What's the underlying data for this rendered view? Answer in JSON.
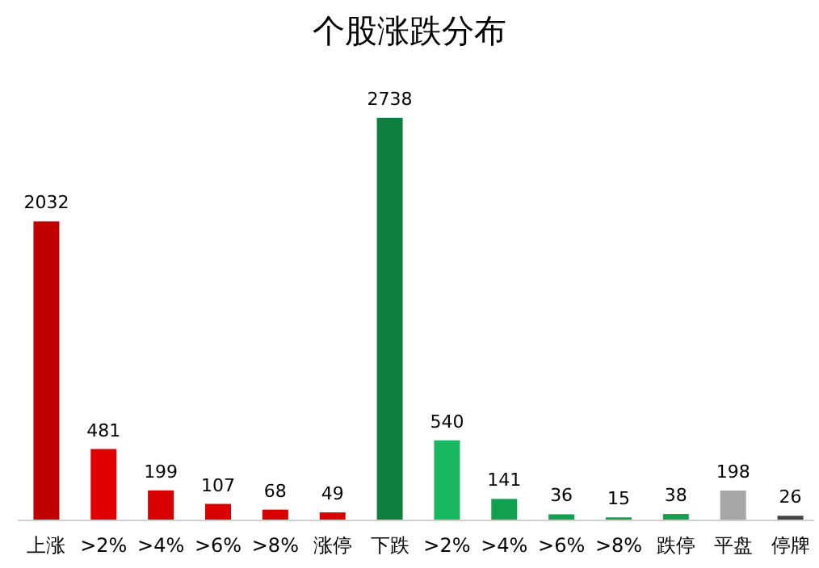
{
  "chart_data": {
    "type": "bar",
    "title": "个股涨跌分布",
    "categories": [
      "上涨",
      ">2%",
      ">4%",
      ">6%",
      ">8%",
      "涨停",
      "下跌",
      ">2%",
      ">4%",
      ">6%",
      ">8%",
      "跌停",
      "平盘",
      "停牌"
    ],
    "values": [
      2032,
      481,
      199,
      107,
      68,
      49,
      2738,
      540,
      141,
      36,
      15,
      38,
      198,
      26
    ],
    "colors": [
      "#c00000",
      "#e00000",
      "#d80000",
      "#d80000",
      "#d80000",
      "#d80000",
      "#0f7f40",
      "#18b860",
      "#12a050",
      "#12a050",
      "#12a050",
      "#12a050",
      "#a6a6a6",
      "#404040"
    ],
    "data_labels": true
  }
}
